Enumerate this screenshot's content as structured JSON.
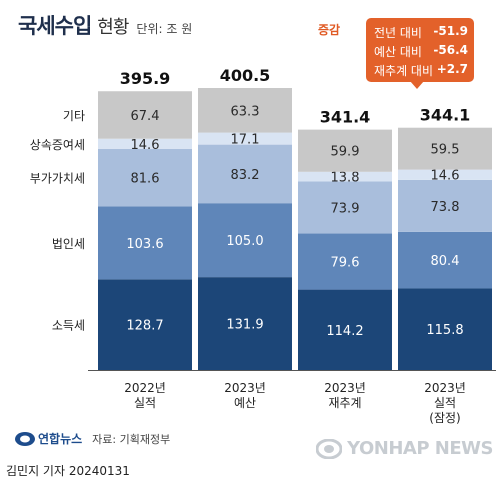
{
  "title": {
    "main": "국세수입",
    "sub": "현황",
    "unit": "단위: 조 원"
  },
  "callout": {
    "label": "증감",
    "rows": [
      {
        "label": "전년 대비",
        "value": "-51.9"
      },
      {
        "label": "예산 대비",
        "value": "-56.4"
      },
      {
        "label": "재추계 대비",
        "value": "+2.7"
      }
    ]
  },
  "chart_data": {
    "type": "bar",
    "stacked": true,
    "categories": [
      "2022년\n실적",
      "2023년\n예산",
      "2023년\n재추계",
      "2023년\n실적\n(잠정)"
    ],
    "series": [
      {
        "name": "소득세",
        "values": [
          128.7,
          131.9,
          114.2,
          115.8
        ],
        "color": "#1c4678"
      },
      {
        "name": "법인세",
        "values": [
          103.6,
          105.0,
          79.6,
          80.4
        ],
        "color": "#5f86b9"
      },
      {
        "name": "부가가치세",
        "values": [
          81.6,
          83.2,
          73.9,
          73.8
        ],
        "color": "#a9bedc"
      },
      {
        "name": "상속증여세",
        "values": [
          14.6,
          17.1,
          13.8,
          14.6
        ],
        "color": "#d9e4f3"
      },
      {
        "name": "기타",
        "values": [
          67.4,
          63.3,
          59.9,
          59.5
        ],
        "color": "#c8c8c8"
      }
    ],
    "totals": [
      395.9,
      400.5,
      341.4,
      344.1
    ],
    "ylim": [
      0,
      400.5
    ],
    "legend": "left, labels beside segments"
  },
  "source": {
    "logo": "연합뉴스",
    "text": "자료: 기획재정부"
  },
  "byline": "김민지 기자  20240131",
  "watermark": "YONHAP NEWS",
  "colors": {
    "accent": "#e3612a",
    "title": "#1f2f4c"
  }
}
